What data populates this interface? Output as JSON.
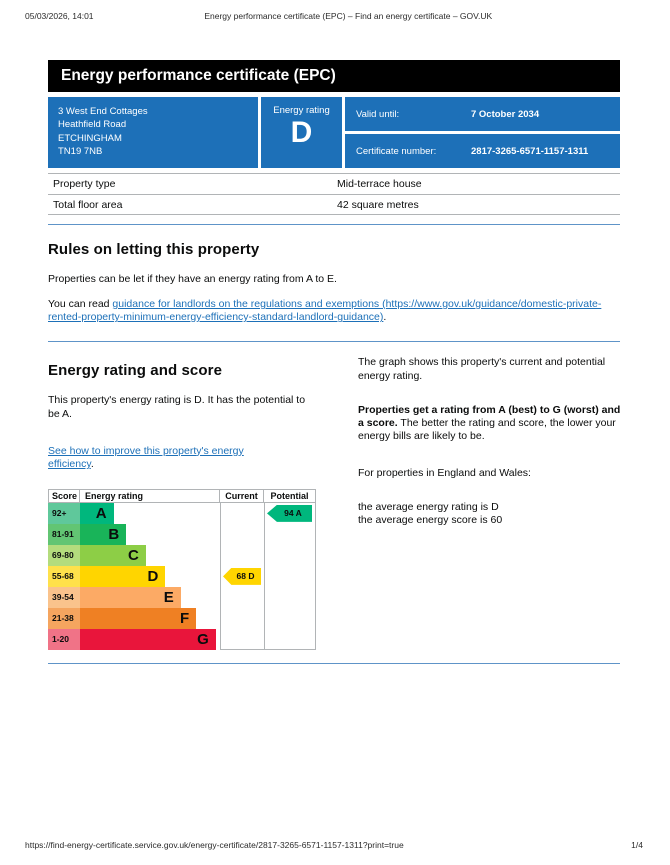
{
  "print_header": {
    "datetime": "05/03/2026, 14:01",
    "title": "Energy performance certificate (EPC) – Find an energy certificate – GOV.UK"
  },
  "banner": {
    "title": "Energy performance certificate (EPC)"
  },
  "summary": {
    "address_lines": [
      "3 West End Cottages",
      "Heathfield Road",
      "ETCHINGHAM",
      "TN19 7NB"
    ],
    "energy_rating_label": "Energy rating",
    "energy_rating": "D",
    "valid_until_label": "Valid until:",
    "valid_until": "7 October 2034",
    "certificate_number_label": "Certificate number:",
    "certificate_number": "2817-3265-6571-1157-1311",
    "box_color": "#1d70b8"
  },
  "property_table": {
    "rows": [
      {
        "label": "Property type",
        "value": "Mid-terrace house"
      },
      {
        "label": "Total floor area",
        "value": "42 square metres"
      }
    ]
  },
  "letting_rules": {
    "heading": "Rules on letting this property",
    "para1": "Properties can be let if they have an energy rating from A to E.",
    "para2_prefix": "You can read ",
    "para2_link": "guidance for landlords on the regulations and exemptions (https://www.gov.uk/guidance/domestic-private-rented-property-minimum-energy-efficiency-standard-landlord-guidance)",
    "para2_suffix": "."
  },
  "rating_section": {
    "heading": "Energy rating and score",
    "para1": "This property's energy rating is D. It has the potential to be A.",
    "link_text": "See how to improve this property's energy efficiency",
    "link_suffix": ".",
    "right": {
      "para1": "The graph shows this property's current and potential energy rating.",
      "para2_bold": "Properties get a rating from A (best) to G (worst) and a score.",
      "para2_rest": " The better the rating and score, the lower your energy bills are likely to be.",
      "para3": "For properties in England and Wales:",
      "avg_line1": "the average energy rating is D",
      "avg_line2": "the average energy score is 60"
    }
  },
  "chart_data": {
    "type": "bar",
    "title": "EPC energy rating graph",
    "headers": [
      "Score",
      "Energy rating",
      "Current",
      "Potential"
    ],
    "bands": [
      {
        "score": "92+",
        "letter": "A",
        "color": "#00b77d",
        "score_color": "#5fc89b",
        "width_pct": 24
      },
      {
        "score": "81-91",
        "letter": "B",
        "color": "#19b459",
        "score_color": "#62c573",
        "width_pct": 33
      },
      {
        "score": "69-80",
        "letter": "C",
        "color": "#8dce46",
        "score_color": "#b4dc7d",
        "width_pct": 47
      },
      {
        "score": "55-68",
        "letter": "D",
        "color": "#ffd500",
        "score_color": "#ffe14b",
        "width_pct": 61
      },
      {
        "score": "39-54",
        "letter": "E",
        "color": "#fcaa65",
        "score_color": "#fac38c",
        "width_pct": 72
      },
      {
        "score": "21-38",
        "letter": "F",
        "color": "#ef8023",
        "score_color": "#f5a55f",
        "width_pct": 83
      },
      {
        "score": "1-20",
        "letter": "G",
        "color": "#e9153b",
        "score_color": "#f07387",
        "width_pct": 97
      }
    ],
    "current": {
      "score": 68,
      "letter": "D",
      "label": "68 D",
      "band_index": 3,
      "color": "#ffd500"
    },
    "potential": {
      "score": 94,
      "letter": "A",
      "label": "94 A",
      "band_index": 0,
      "color": "#00b77d"
    }
  },
  "print_footer": {
    "url": "https://find-energy-certificate.service.gov.uk/energy-certificate/2817-3265-6571-1157-1311?print=true",
    "page": "1/4"
  }
}
